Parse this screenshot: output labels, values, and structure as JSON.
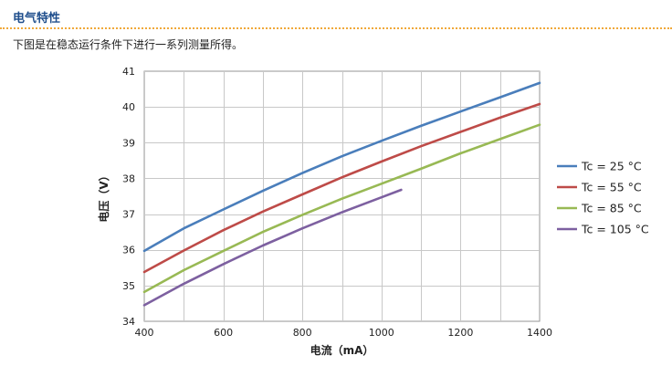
{
  "section": {
    "title": "电气特性",
    "intro": "下图是在稳态运行条件下进行一系列测量所得。"
  },
  "chart_data": {
    "type": "line",
    "xlabel": "电流（mA）",
    "ylabel": "电压（V）",
    "xlim": [
      400,
      1400
    ],
    "ylim": [
      34,
      41
    ],
    "xticks": [
      400,
      600,
      800,
      1000,
      1200,
      1400
    ],
    "yticks": [
      34,
      35,
      36,
      37,
      38,
      39,
      40,
      41
    ],
    "grid": true,
    "legend_position": "right",
    "series": [
      {
        "name": "Tc = 25 °C",
        "color": "#4a7ebb",
        "x": [
          400,
          500,
          600,
          700,
          800,
          900,
          1000,
          1100,
          1200,
          1300,
          1400
        ],
        "y": [
          35.97,
          36.6,
          37.13,
          37.65,
          38.15,
          38.62,
          39.05,
          39.47,
          39.87,
          40.27,
          40.67
        ]
      },
      {
        "name": "Tc = 55 °C",
        "color": "#be4b48",
        "x": [
          400,
          500,
          600,
          700,
          800,
          900,
          1000,
          1100,
          1200,
          1300,
          1400
        ],
        "y": [
          35.38,
          35.98,
          36.55,
          37.07,
          37.55,
          38.03,
          38.47,
          38.9,
          39.3,
          39.7,
          40.08
        ]
      },
      {
        "name": "Tc = 85 °C",
        "color": "#98b954",
        "x": [
          400,
          500,
          600,
          700,
          800,
          900,
          1000,
          1100,
          1200,
          1300,
          1400
        ],
        "y": [
          34.82,
          35.43,
          35.97,
          36.5,
          36.98,
          37.43,
          37.85,
          38.27,
          38.7,
          39.1,
          39.5
        ]
      },
      {
        "name": "Tc = 105 °C",
        "color": "#7d60a0",
        "x": [
          400,
          500,
          600,
          700,
          800,
          900,
          1000,
          1050
        ],
        "y": [
          34.45,
          35.05,
          35.6,
          36.12,
          36.6,
          37.05,
          37.47,
          37.68
        ]
      }
    ]
  }
}
